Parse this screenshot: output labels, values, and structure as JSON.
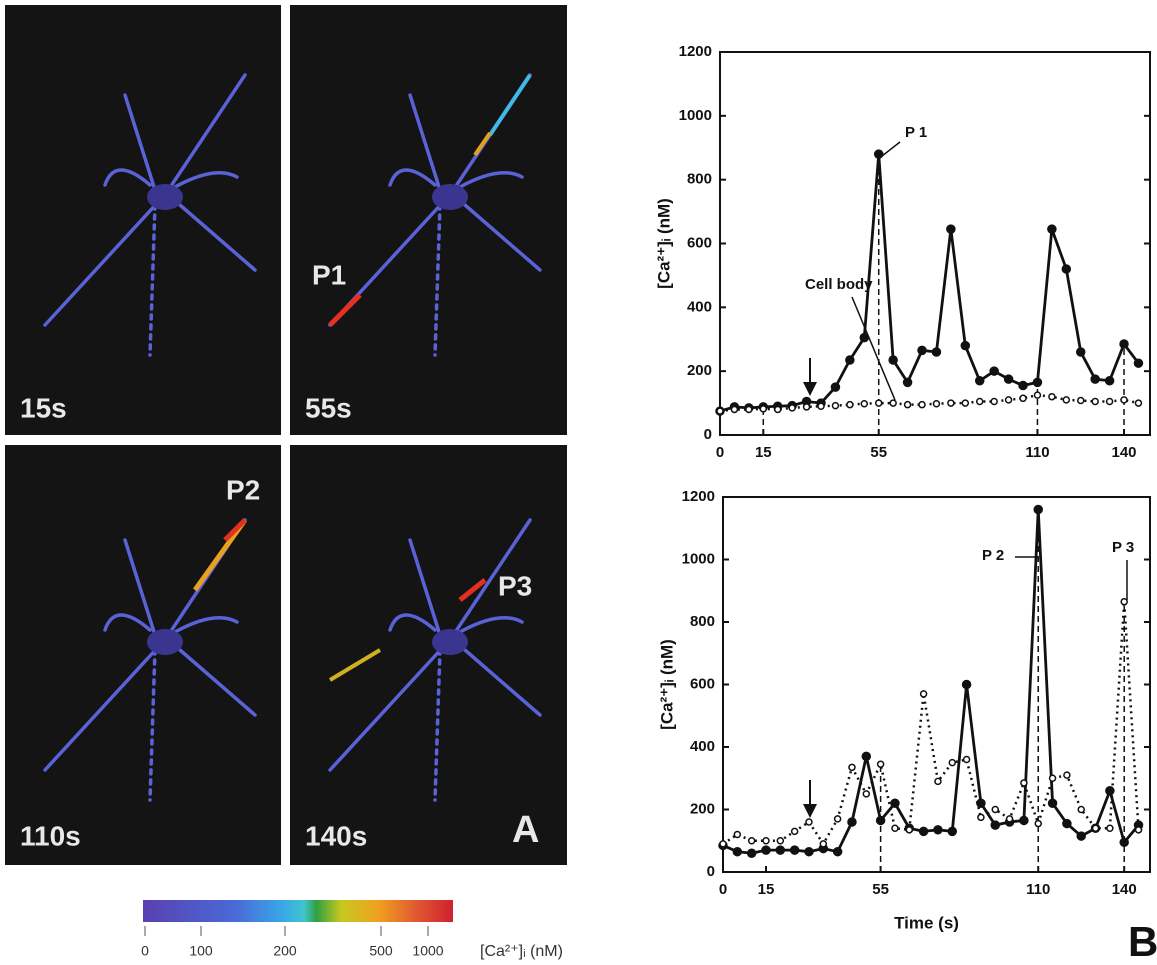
{
  "panel_a": {
    "label": "A",
    "frames": [
      {
        "time": "15s"
      },
      {
        "time": "55s",
        "marker": "P1"
      },
      {
        "time": "110s",
        "marker": "P2"
      },
      {
        "time": "140s",
        "marker": "P3"
      }
    ],
    "colorbar": {
      "ticks": [
        0,
        100,
        200,
        500,
        1000
      ],
      "label": "[Ca²⁺]ᵢ (nM)"
    }
  },
  "panel_b": {
    "label": "B"
  },
  "chart_data": [
    {
      "type": "line",
      "ylabel": "[Ca²⁺]ᵢ (nM)",
      "annotations": [
        "P 1",
        "Cell body"
      ],
      "x": [
        0,
        5,
        10,
        15,
        20,
        25,
        30,
        35,
        40,
        45,
        50,
        55,
        60,
        65,
        70,
        75,
        80,
        85,
        90,
        95,
        100,
        105,
        110,
        115,
        120,
        125,
        130,
        135,
        140,
        145
      ],
      "xlim": [
        0,
        149
      ],
      "xticks": [
        0,
        15,
        55,
        110,
        140
      ],
      "ylim": [
        0,
        1200
      ],
      "yticks": [
        0,
        200,
        400,
        600,
        800,
        1000,
        1200
      ],
      "guide_lines": [
        15,
        55,
        110,
        140
      ],
      "series": [
        {
          "color": "#111111",
          "style": "solid",
          "values": [
            75,
            88,
            85,
            88,
            90,
            92,
            105,
            100,
            150,
            235,
            305,
            880,
            235,
            165,
            265,
            260,
            645,
            280,
            170,
            200,
            175,
            155,
            165,
            645,
            520,
            260,
            175,
            170,
            285,
            225
          ]
        },
        {
          "name": "Cell body",
          "color": "#111111",
          "style": "dotted",
          "values": [
            75,
            80,
            80,
            82,
            80,
            85,
            88,
            90,
            92,
            95,
            98,
            100,
            100,
            95,
            95,
            98,
            100,
            100,
            105,
            105,
            110,
            115,
            125,
            120,
            110,
            108,
            105,
            105,
            110,
            100
          ]
        }
      ]
    },
    {
      "type": "line",
      "ylabel": "[Ca²⁺]ᵢ (nM)",
      "xlabel": "Time (s)",
      "annotations": [
        "P 2",
        "P 3"
      ],
      "x": [
        0,
        5,
        10,
        15,
        20,
        25,
        30,
        35,
        40,
        45,
        50,
        55,
        60,
        65,
        70,
        75,
        80,
        85,
        90,
        95,
        100,
        105,
        110,
        115,
        120,
        125,
        130,
        135,
        140,
        145
      ],
      "xlim": [
        0,
        149
      ],
      "xticks": [
        0,
        15,
        55,
        110,
        140
      ],
      "ylim": [
        0,
        1200
      ],
      "yticks": [
        0,
        200,
        400,
        600,
        800,
        1000,
        1200
      ],
      "guide_lines": [
        55,
        110,
        140
      ],
      "series": [
        {
          "color": "#111111",
          "style": "solid",
          "values": [
            85,
            65,
            60,
            70,
            70,
            70,
            65,
            75,
            65,
            160,
            370,
            165,
            220,
            140,
            130,
            135,
            130,
            600,
            220,
            150,
            160,
            165,
            1160,
            220,
            155,
            115,
            140,
            260,
            95,
            150
          ]
        },
        {
          "color": "#111111",
          "style": "dotted",
          "values": [
            90,
            120,
            100,
            100,
            100,
            130,
            160,
            90,
            170,
            335,
            250,
            345,
            140,
            135,
            570,
            290,
            350,
            360,
            175,
            200,
            170,
            285,
            155,
            300,
            310,
            200,
            140,
            140,
            865,
            135
          ]
        }
      ]
    }
  ]
}
